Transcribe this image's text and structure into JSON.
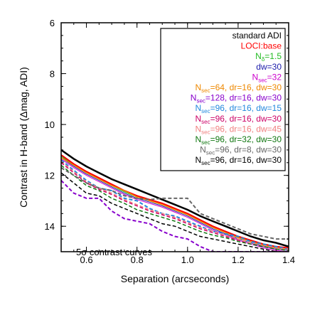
{
  "chart_data": {
    "type": "line",
    "title": "",
    "xlabel": "Separation (arcseconds)",
    "ylabel": "Contrast in H-band (Δmag, ADI)",
    "xlim": [
      0.5,
      1.4
    ],
    "ylim": [
      6,
      15
    ],
    "y_inverted": true,
    "grid": false,
    "legend_position": "top-right",
    "xticks": [
      0.6,
      0.8,
      1.0,
      1.2,
      1.4
    ],
    "xtick_labels": [
      "0.6",
      "0.8",
      "1.0",
      "1.2",
      "1.4"
    ],
    "yticks": [
      6,
      8,
      10,
      12,
      14
    ],
    "ytick_labels": [
      "6",
      "8",
      "10",
      "12",
      "14"
    ],
    "annotation": "5σ contrast curves",
    "series": [
      {
        "name": "standard ADI",
        "legend": {
          "main": "standard ADI"
        },
        "color": "#000000",
        "dash": "solid",
        "width": 2.5,
        "x": [
          0.5,
          0.55,
          0.6,
          0.65,
          0.7,
          0.75,
          0.8,
          0.85,
          0.9,
          0.95,
          1.0,
          1.05,
          1.1,
          1.15,
          1.2,
          1.25,
          1.3,
          1.35,
          1.4
        ],
        "y": [
          11.0,
          11.35,
          11.65,
          11.9,
          12.15,
          12.35,
          12.55,
          12.75,
          12.95,
          13.15,
          13.35,
          13.6,
          13.8,
          14.0,
          14.2,
          14.4,
          14.55,
          14.65,
          14.8
        ]
      },
      {
        "name": "LOCI:base",
        "legend": {
          "main": "LOCI:base"
        },
        "color": "#ff0000",
        "dash": "solid",
        "width": 2,
        "x": [
          0.5,
          0.55,
          0.6,
          0.65,
          0.7,
          0.75,
          0.8,
          0.85,
          0.9,
          0.95,
          1.0,
          1.05,
          1.1,
          1.15,
          1.2,
          1.25,
          1.3,
          1.35,
          1.4
        ],
        "y": [
          11.2,
          11.55,
          11.85,
          12.1,
          12.35,
          12.6,
          12.8,
          12.95,
          13.1,
          13.3,
          13.5,
          13.75,
          14.0,
          14.2,
          14.4,
          14.55,
          14.7,
          14.8,
          14.85
        ]
      },
      {
        "name": "Nδ=1.5",
        "legend": {
          "main": "N",
          "sub": "δ",
          "rest": "=1.5"
        },
        "color": "#22bb22",
        "dash": "solid",
        "width": 1,
        "x": [
          0.5,
          0.55,
          0.6,
          0.65,
          0.7,
          0.75,
          0.8,
          0.85,
          0.9,
          0.95,
          1.0,
          1.05,
          1.1,
          1.15,
          1.2,
          1.25,
          1.3,
          1.35,
          1.4
        ],
        "y": [
          11.25,
          11.6,
          11.9,
          12.15,
          12.4,
          12.65,
          12.85,
          13.0,
          13.15,
          13.35,
          13.55,
          13.8,
          14.05,
          14.25,
          14.45,
          14.6,
          14.75,
          14.85,
          14.9
        ]
      },
      {
        "name": "dw=30",
        "legend": {
          "main": "dw=30"
        },
        "color": "#1a1aaa",
        "dash": "solid",
        "width": 1,
        "x": [
          0.5,
          0.55,
          0.6,
          0.65,
          0.7,
          0.75,
          0.8,
          0.85,
          0.9,
          0.95,
          1.0,
          1.05,
          1.1,
          1.15,
          1.2,
          1.25,
          1.3,
          1.35,
          1.4
        ],
        "y": [
          11.3,
          11.65,
          11.95,
          12.2,
          12.45,
          12.7,
          12.9,
          13.05,
          13.2,
          13.4,
          13.6,
          13.85,
          14.1,
          14.3,
          14.5,
          14.65,
          14.8,
          14.9,
          14.95
        ]
      },
      {
        "name": "Nsec=32",
        "legend": {
          "main": "N",
          "sub": "sec",
          "rest": "=32"
        },
        "color": "#cc00cc",
        "dash": "solid",
        "width": 1,
        "x": [
          0.5,
          0.55,
          0.6,
          0.65,
          0.7,
          0.75,
          0.8,
          0.85,
          0.9,
          0.95,
          1.0,
          1.05,
          1.1,
          1.15,
          1.2,
          1.25,
          1.3,
          1.35,
          1.4
        ],
        "y": [
          11.35,
          11.7,
          12.0,
          12.25,
          12.5,
          12.75,
          12.95,
          13.1,
          13.25,
          13.45,
          13.65,
          13.9,
          14.15,
          14.35,
          14.55,
          14.7,
          14.85,
          14.95,
          15.0
        ]
      },
      {
        "name": "Nsec=64, dr=16, dw=30",
        "legend": {
          "main": "N",
          "sub": "sec",
          "rest": "=64, dr=16, dw=30"
        },
        "color": "#ee8800",
        "dash": "solid",
        "width": 1.5,
        "x": [
          0.5,
          0.55,
          0.6,
          0.65,
          0.7,
          0.75,
          0.8,
          0.85,
          0.9,
          0.95,
          1.0,
          1.05,
          1.1,
          1.15,
          1.2,
          1.25,
          1.3,
          1.35,
          1.4
        ],
        "y": [
          11.3,
          11.6,
          11.9,
          12.15,
          12.4,
          12.6,
          12.85,
          13.0,
          13.15,
          13.35,
          13.55,
          13.8,
          14.05,
          14.25,
          14.45,
          14.6,
          14.75,
          14.85,
          14.9
        ]
      },
      {
        "name": "Nsec=128, dr=16, dw=30",
        "legend": {
          "main": "N",
          "sub": "sec",
          "rest": "=128, dr=16, dw=30"
        },
        "color": "#8800cc",
        "dash": "dashed",
        "width": 2,
        "x": [
          0.5,
          0.55,
          0.6,
          0.65,
          0.7,
          0.75,
          0.8,
          0.85,
          0.9,
          0.95,
          1.0,
          1.05,
          1.1,
          1.15,
          1.2,
          1.25,
          1.3,
          1.35,
          1.4
        ],
        "y": [
          12.2,
          12.7,
          12.9,
          12.9,
          13.4,
          13.7,
          13.8,
          13.9,
          14.2,
          14.4,
          14.5,
          14.8,
          15.0,
          15.0,
          15.0,
          15.0,
          15.0,
          15.0,
          15.0
        ]
      },
      {
        "name": "Nsec=96, dr=16, dw=15",
        "legend": {
          "main": "N",
          "sub": "sec",
          "rest": "=96, dr=16, dw=15"
        },
        "color": "#2288dd",
        "dash": "dashed",
        "width": 2,
        "x": [
          0.5,
          0.55,
          0.6,
          0.65,
          0.7,
          0.75,
          0.8,
          0.85,
          0.9,
          0.95,
          1.0,
          1.05,
          1.1,
          1.15,
          1.2,
          1.25,
          1.3,
          1.35,
          1.4
        ],
        "y": [
          11.4,
          11.8,
          12.2,
          12.5,
          12.6,
          12.9,
          13.0,
          13.3,
          13.5,
          13.6,
          13.8,
          14.0,
          14.2,
          14.3,
          14.4,
          14.6,
          14.7,
          14.8,
          14.9
        ]
      },
      {
        "name": "Nsec=96, dr=16, dw=30",
        "legend": {
          "main": "N",
          "sub": "sec",
          "rest": "=96, dr=16, dw=30"
        },
        "color": "#cc0066",
        "dash": "dashed",
        "width": 1.5,
        "x": [
          0.5,
          0.55,
          0.6,
          0.65,
          0.7,
          0.75,
          0.8,
          0.85,
          0.9,
          0.95,
          1.0,
          1.05,
          1.1,
          1.15,
          1.2,
          1.25,
          1.3,
          1.35,
          1.4
        ],
        "y": [
          11.5,
          11.9,
          12.3,
          12.55,
          12.75,
          13.0,
          13.2,
          13.4,
          13.55,
          13.7,
          13.9,
          14.1,
          14.25,
          14.4,
          14.55,
          14.7,
          14.8,
          14.9,
          14.95
        ]
      },
      {
        "name": "Nsec=96, dr=16, dw=45",
        "legend": {
          "main": "N",
          "sub": "sec",
          "rest": "=96, dr=16, dw=45"
        },
        "color": "#f08080",
        "dash": "dashed",
        "width": 1.5,
        "x": [
          0.5,
          0.55,
          0.6,
          0.65,
          0.7,
          0.75,
          0.8,
          0.85,
          0.9,
          0.95,
          1.0,
          1.05,
          1.1,
          1.15,
          1.2,
          1.25,
          1.3,
          1.35,
          1.4
        ],
        "y": [
          11.45,
          11.85,
          12.25,
          12.5,
          12.7,
          12.95,
          13.15,
          13.35,
          13.5,
          13.65,
          13.85,
          14.05,
          14.2,
          14.35,
          14.5,
          14.65,
          14.75,
          14.85,
          14.9
        ]
      },
      {
        "name": "Nsec=96, dr=32, dw=30",
        "legend": {
          "main": "N",
          "sub": "sec",
          "rest": "=96, dr=32, dw=30"
        },
        "color": "#117711",
        "dash": "dashed",
        "width": 1.5,
        "x": [
          0.5,
          0.55,
          0.6,
          0.65,
          0.7,
          0.75,
          0.8,
          0.85,
          0.9,
          0.95,
          1.0,
          1.05,
          1.1,
          1.15,
          1.2,
          1.25,
          1.3,
          1.35,
          1.4
        ],
        "y": [
          11.6,
          12.0,
          12.4,
          12.6,
          12.9,
          13.1,
          13.35,
          13.5,
          13.65,
          13.8,
          14.0,
          14.2,
          14.35,
          14.45,
          14.6,
          14.7,
          14.8,
          14.9,
          14.95
        ]
      },
      {
        "name": "Nsec=96, dr=8, dw=30",
        "legend": {
          "main": "N",
          "sub": "sec",
          "rest": "=96, dr=8, dw=30"
        },
        "color": "#666666",
        "dash": "dashed",
        "width": 2,
        "x": [
          0.5,
          0.55,
          0.6,
          0.65,
          0.7,
          0.75,
          0.8,
          0.85,
          0.9,
          0.95,
          1.0,
          1.05,
          1.1,
          1.15,
          1.2,
          1.25,
          1.3,
          1.35,
          1.4
        ],
        "y": [
          11.7,
          12.0,
          12.3,
          12.5,
          12.6,
          12.8,
          12.9,
          12.95,
          12.9,
          12.9,
          12.9,
          13.5,
          13.7,
          13.9,
          14.1,
          14.3,
          14.4,
          14.5,
          14.5
        ]
      },
      {
        "name": "Nsec=96, dr=16, dw=30 (black)",
        "legend": {
          "main": "N",
          "sub": "sec",
          "rest": "=96, dr=16, dw=30"
        },
        "color": "#000000",
        "dash": "dashed",
        "width": 1.5,
        "x": [
          0.5,
          0.55,
          0.6,
          0.65,
          0.7,
          0.75,
          0.8,
          0.85,
          0.9,
          0.95,
          1.0,
          1.05,
          1.1,
          1.15,
          1.2,
          1.25,
          1.3,
          1.35,
          1.4
        ],
        "y": [
          11.9,
          12.3,
          12.7,
          12.8,
          13.1,
          13.3,
          13.5,
          13.7,
          13.9,
          14.0,
          14.2,
          14.4,
          14.5,
          14.6,
          14.7,
          14.8,
          14.9,
          15.0,
          15.0
        ]
      }
    ]
  }
}
